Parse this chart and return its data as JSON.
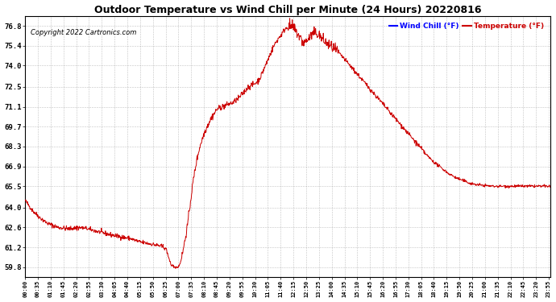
{
  "title": "Outdoor Temperature vs Wind Chill per Minute (24 Hours) 20220816",
  "copyright": "Copyright 2022 Cartronics.com",
  "legend_wind_chill": "Wind Chill (°F)",
  "legend_temperature": "Temperature (°F)",
  "wind_chill_color": "#0000ff",
  "temperature_color": "#cc0000",
  "line_color": "#cc0000",
  "background_color": "#ffffff",
  "plot_bg_color": "#ffffff",
  "grid_color": "#999999",
  "title_color": "#000000",
  "copyright_color": "#000000",
  "yticks": [
    59.8,
    61.2,
    62.6,
    64.0,
    65.5,
    66.9,
    68.3,
    69.7,
    71.1,
    72.5,
    74.0,
    75.4,
    76.8
  ],
  "ylim": [
    59.1,
    77.5
  ],
  "xlim_max": 1439,
  "num_minutes": 1440,
  "tick_interval": 35
}
